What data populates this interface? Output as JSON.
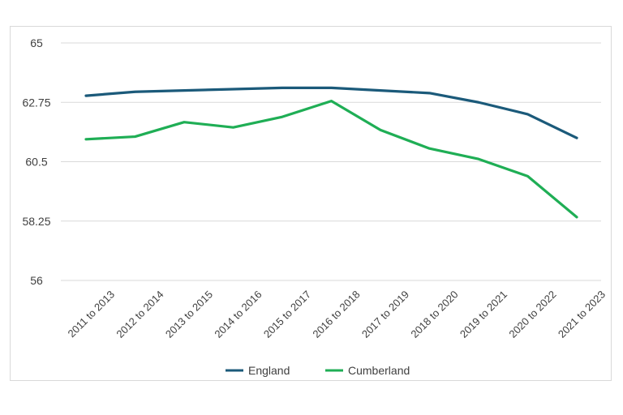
{
  "chart_data": {
    "type": "line",
    "title": "",
    "xlabel": "",
    "ylabel": "",
    "categories": [
      "2011 to 2013",
      "2012 to 2014",
      "2013 to 2015",
      "2014 to 2016",
      "2015 to 2017",
      "2016 to 2018",
      "2017 to 2019",
      "2018 to 2020",
      "2019 to 2021",
      "2020 to 2022",
      "2021 to 2023"
    ],
    "y_ticks": [
      "56",
      "58.25",
      "60.5",
      "62.75",
      "65"
    ],
    "ylim": [
      56,
      65
    ],
    "grid": true,
    "legend": "bottom",
    "series": [
      {
        "name": "England",
        "color": "#1b5a7a",
        "values": [
          63.0,
          63.15,
          63.2,
          63.25,
          63.3,
          63.3,
          63.2,
          63.1,
          62.75,
          62.3,
          61.4
        ]
      },
      {
        "name": "Cumberland",
        "color": "#1fae55",
        "values": [
          61.35,
          61.45,
          62.0,
          61.8,
          62.2,
          62.8,
          61.7,
          61.0,
          60.6,
          59.95,
          58.4
        ]
      }
    ]
  }
}
